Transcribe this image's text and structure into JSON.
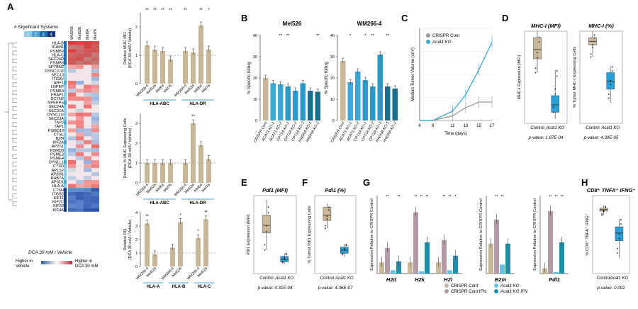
{
  "colors": {
    "tan": "#c9b79a",
    "tan_dark": "#a99576",
    "cyan": "#3aa7d6",
    "cyan_light": "#63c0e2",
    "teal": "#1d8fa8",
    "gray": "#9a9a9a",
    "mauve": "#b39aa6",
    "cyanbox": "#2aa0d8"
  },
  "panelA": {
    "letter": "A",
    "sig_title": "# Significant Systems",
    "sig_values": [
      "1",
      "2",
      "3",
      "4"
    ],
    "heatmap_cols": [
      "WM266",
      "Mel526",
      "Mel64",
      "Mel76"
    ],
    "heatmap_genes": [
      "HLA-B",
      "ICAM1",
      "PSMB9",
      "HLA-C",
      "SEC24D",
      "PSMB8",
      "SPTBN2",
      "DYNC1LI2",
      "SEC13",
      "ITGAV",
      "ARF1",
      "LNPEP",
      "PSMB3",
      "ERAP1",
      "DCTN2",
      "NPEPPS",
      "SEC24A",
      "SEC31A",
      "DYNC1I2",
      "SEC23A",
      "TAP2",
      "TAP1",
      "PSMD10",
      "CTSL",
      "B2M",
      "KIF2A",
      "AP2S1",
      "PSMD9",
      "PSME3",
      "PSME4",
      "DYNLL1",
      "CTSD",
      "AP1S2",
      "AP2M1",
      "RAB7A",
      "AP3D1",
      "HLA-A",
      "CTSH",
      "ITGB5",
      "KIF11",
      "KIF2C",
      "KIF23",
      "KIF4A"
    ],
    "legend_title": "DCA 30 mM / Vehicle",
    "legend_left": "Higher in Vehicle",
    "legend_right": "Higher in DCA 30 mM",
    "bar_charts": [
      {
        "ylabel": "Relative MHC MFI (DCA 30 mM / Vehicle)",
        "ylim": [
          0,
          2.5
        ],
        "yticks": [
          0,
          1,
          2
        ],
        "groups": [
          {
            "label": "HLA-ABC",
            "cats": [
              "WM266-4",
              "Mel526",
              "Mel64",
              "Mel76"
            ],
            "values": [
              1.35,
              1.2,
              1.15,
              0.85
            ],
            "stars": [
              "**",
              "**",
              "**",
              "**"
            ]
          },
          {
            "label": "HLA-DR",
            "cats": [
              "WM266-4",
              "Mel526",
              "Mel64",
              "Mel76"
            ],
            "values": [
              1.15,
              1.1,
              2.05,
              1.2
            ],
            "stars": [
              "**",
              "",
              "**",
              "*"
            ]
          }
        ]
      },
      {
        "ylabel": "Relative %-MHC Expressing Cells (DCA 30 mM / Vehicle)",
        "ylim": [
          0,
          3.5
        ],
        "yticks": [
          0,
          1,
          2,
          3
        ],
        "groups": [
          {
            "label": "HLA-ABC",
            "cats": [
              "WM266-4",
              "Mel526",
              "Mel64",
              "Mel76"
            ],
            "values": [
              1.0,
              1.0,
              1.0,
              1.0
            ],
            "stars": [
              "",
              "",
              "",
              ""
            ]
          },
          {
            "label": "HLA-DR",
            "cats": [
              "WM266-4",
              "Mel526",
              "Mel64",
              "Mel76"
            ],
            "values": [
              1.0,
              3.0,
              1.9,
              1.2
            ],
            "stars": [
              "",
              "**",
              "",
              ""
            ]
          }
        ]
      },
      {
        "ylabel": "Relative RQ (DCA 30 mM / Vehicle)",
        "ylim": [
          0,
          4
        ],
        "yticks": [
          0,
          1,
          2,
          3,
          4
        ],
        "groups": [
          {
            "label": "HLA-A",
            "cats": [
              "WM266-4",
              "Mel526"
            ],
            "values": [
              3.2,
              0.9
            ],
            "stars": [
              "**",
              ""
            ]
          },
          {
            "label": "HLA-B",
            "cats": [
              "WM266-4",
              "Mel526"
            ],
            "values": [
              1.4,
              3.3
            ],
            "stars": [
              "",
              "*"
            ]
          },
          {
            "label": "HLA-C",
            "cats": [
              "WM266-4",
              "Mel526"
            ],
            "values": [
              2.1,
              3.5
            ],
            "stars": [
              "*",
              "**"
            ]
          }
        ]
      }
    ]
  },
  "panelB": {
    "letter": "B",
    "ylabel": "% Specific Killing",
    "ylim": [
      0,
      40
    ],
    "yticks": [
      0,
      10,
      20,
      30,
      40
    ],
    "charts": [
      {
        "title": "Mel526",
        "cats": [
          "CRISPR Cont",
          "ACAT1 KO-1",
          "ACAT1 KO-2",
          "CPT1A KO-1",
          "CPT1A KO-2",
          "CPT1A KO-3",
          "HADHA KO-1",
          "HADHA KO-2"
        ],
        "values": [
          20,
          17.5,
          17,
          16,
          14,
          17.5,
          14,
          13.5
        ],
        "stars": [
          "",
          "",
          "**",
          "**",
          "",
          "",
          "",
          "**"
        ]
      },
      {
        "title": "WM266-4",
        "cats": [
          "CRISPR Cont",
          "ACAT1 KO-1",
          "ACAT1 KO-2",
          "CPT1A KO-1",
          "CPT1A KO-2",
          "CPT1A KO-3",
          "HADHA KO-1",
          "HADHA KO-2"
        ],
        "values": [
          28,
          18,
          23,
          19,
          16,
          31,
          16,
          15
        ],
        "stars": [
          "",
          "*",
          "",
          "*",
          "**",
          "",
          "**",
          ""
        ]
      }
    ]
  },
  "panelC": {
    "letter": "C",
    "chart_data": {
      "type": "line",
      "xlabel": "Time (days)",
      "ylabel": "Median Tumor Volume (cm³)",
      "x": [
        6,
        8,
        11,
        13,
        15,
        17
      ],
      "xticks": [
        "6",
        "8",
        "11",
        "13",
        "15",
        "17"
      ],
      "series": [
        {
          "name": "CRISPR Cont",
          "values": [
            0,
            0,
            0.05,
            0.14,
            0.2,
            0.2
          ]
        },
        {
          "name": "Acat1 KO",
          "values": [
            0,
            0,
            0.1,
            0.28,
            0.55,
            0.85
          ]
        }
      ],
      "ylim": [
        0,
        1
      ]
    }
  },
  "panelD": {
    "letter": "D",
    "plots": [
      {
        "title": "MHC-I (MFI)",
        "ylabel": "MHC-I Expression (MFI)",
        "cats": [
          "Control",
          "Acat1 KO"
        ],
        "pvalue": "p-value: 1.87E-04",
        "boxes": [
          {
            "min": 0.55,
            "q1": 0.7,
            "med": 0.8,
            "q3": 0.93,
            "max": 1.0
          },
          {
            "min": 0.05,
            "q1": 0.12,
            "med": 0.2,
            "q3": 0.3,
            "max": 0.58
          }
        ]
      },
      {
        "title": "MHC-I (%)",
        "ylabel": "% Tumor MHC-I Expressing Cells",
        "cats": [
          "Control",
          "Acat1 KO"
        ],
        "pvalue": "p-value: 4.39E-05",
        "boxes": [
          {
            "min": 0.72,
            "q1": 0.85,
            "med": 0.89,
            "q3": 0.93,
            "max": 1.0
          },
          {
            "min": 0.22,
            "q1": 0.37,
            "med": 0.45,
            "q3": 0.55,
            "max": 0.62
          }
        ]
      }
    ]
  },
  "panelE": {
    "letter": "E",
    "title": "Pdl1 (MFI)",
    "ylabel": "Pdl1 Expression (MFI)",
    "cats": [
      "Control",
      "Acat1 KO"
    ],
    "pvalue": "p-value: 4.31E-04",
    "boxes": [
      {
        "min": 0.3,
        "q1": 0.52,
        "med": 0.62,
        "q3": 0.75,
        "max": 0.95
      },
      {
        "min": 0.12,
        "q1": 0.15,
        "med": 0.18,
        "q3": 0.22,
        "max": 0.26
      }
    ]
  },
  "panelF": {
    "letter": "F",
    "title": "Pdl1 (%)",
    "ylabel": "% Tumor Pdl1 Expressing Cells",
    "cats": [
      "Control",
      "Acat1 KO"
    ],
    "pvalue": "p-value: 4.36E-07",
    "boxes": [
      {
        "min": 0.58,
        "q1": 0.68,
        "med": 0.75,
        "q3": 0.85,
        "max": 0.9
      },
      {
        "min": 0.22,
        "q1": 0.26,
        "med": 0.3,
        "q3": 0.34,
        "max": 0.38
      }
    ]
  },
  "panelG": {
    "letter": "G",
    "ylabel": "Expression Relative to CRISPR Control",
    "groups": [
      "H2d",
      "H2k",
      "H2l"
    ],
    "series_names": [
      "CRISPR Cont",
      "CRISPR Cont IFN",
      "Acat1 KO",
      "Acat1 KO IFN"
    ],
    "values": [
      [
        1,
        2.3,
        0.3,
        1.1
      ],
      [
        1,
        5.5,
        0.2,
        2.8
      ],
      [
        1,
        3.0,
        0.3,
        1.6
      ]
    ],
    "ylim": [
      0,
      7
    ],
    "stars": [
      [
        "",
        "**",
        "",
        "**"
      ],
      [
        "",
        "**",
        "**",
        "**"
      ],
      [
        "",
        "**",
        "**",
        "*"
      ]
    ],
    "b2m_label": "B2m",
    "b2m_values": [
      1,
      1.8,
      0.3,
      1.0
    ],
    "b2m_stars": [
      "",
      "**",
      "**",
      ""
    ],
    "pdl1_label": "Pdl1",
    "pdl1_values": [
      1,
      12,
      0.3,
      6
    ],
    "pdl1_stars": [
      "",
      "**",
      "**",
      "**"
    ],
    "legend": [
      {
        "label": "CRISPR Cont"
      },
      {
        "label": "CRISPR Cont IFN"
      },
      {
        "label": "Acat1 KO"
      },
      {
        "label": "Acat1 KO IFN"
      }
    ]
  },
  "panelH": {
    "letter": "H",
    "title": "CD8⁺ TNFA⁺ IFNG⁺",
    "ylabel": "% CD8⁺ TNFA⁺ IFNG⁺",
    "cats": [
      "Control",
      "Acat1 KO"
    ],
    "pvalue": "p-value: 0.002",
    "boxes": [
      {
        "min": 0.75,
        "q1": 0.8,
        "med": 0.82,
        "q3": 0.84,
        "max": 0.88
      },
      {
        "min": 0.2,
        "q1": 0.42,
        "med": 0.52,
        "q3": 0.6,
        "max": 0.7
      }
    ]
  }
}
